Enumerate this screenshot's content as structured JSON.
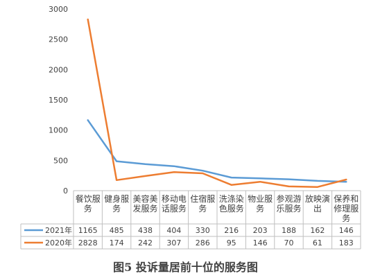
{
  "chart_data": {
    "type": "line",
    "title": "",
    "caption": "图5  投诉量居前十位的服务图",
    "categories": [
      [
        "餐饮服",
        "务"
      ],
      [
        "健身服",
        "务"
      ],
      [
        "美容美",
        "发服务"
      ],
      [
        "移动电",
        "话服务"
      ],
      [
        "住宿服",
        "务"
      ],
      [
        "洗涤染",
        "色服务"
      ],
      [
        "物业服",
        "务"
      ],
      [
        "参观游",
        "乐服务"
      ],
      [
        "放映演",
        "出"
      ],
      [
        "保养和",
        "修理服",
        "务"
      ]
    ],
    "series": [
      {
        "name": "2021年",
        "color": "#5b9bd5",
        "values": [
          1165,
          485,
          438,
          404,
          330,
          216,
          203,
          188,
          162,
          146
        ]
      },
      {
        "name": "2020年",
        "color": "#ed7d31",
        "values": [
          2828,
          174,
          242,
          307,
          286,
          95,
          146,
          70,
          61,
          183
        ]
      }
    ],
    "ylim": [
      0,
      3000
    ],
    "yticks": [
      0,
      500,
      1000,
      1500,
      2000,
      2500,
      3000
    ],
    "grid": false,
    "legend": "data-table-left"
  }
}
